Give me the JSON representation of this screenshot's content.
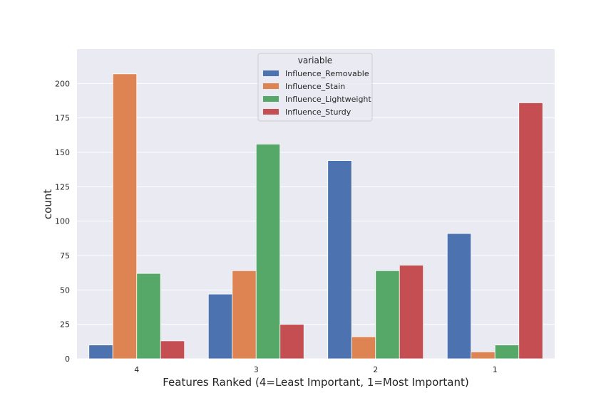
{
  "chart_data": {
    "type": "bar",
    "title": "",
    "xlabel": "Features Ranked (4=Least Important, 1=Most Important)",
    "ylabel": "count",
    "categories": [
      "4",
      "3",
      "2",
      "1"
    ],
    "ylim": [
      0,
      225
    ],
    "yticks": [
      0,
      25,
      50,
      75,
      100,
      125,
      150,
      175,
      200
    ],
    "grid": true,
    "legend": {
      "title": "variable",
      "placement": "top-center"
    },
    "series": [
      {
        "name": "Influence_Removable",
        "color": "#4c72b0",
        "values": [
          10,
          47,
          144,
          91
        ]
      },
      {
        "name": "Influence_Stain",
        "color": "#dd8452",
        "values": [
          207,
          64,
          16,
          5
        ]
      },
      {
        "name": "Influence_Lightweight",
        "color": "#55a868",
        "values": [
          62,
          156,
          64,
          10
        ]
      },
      {
        "name": "Influence_Sturdy",
        "color": "#c44e52",
        "values": [
          13,
          25,
          68,
          186
        ]
      }
    ]
  },
  "colors": {
    "plot_background": "#eaeaf2",
    "grid": "#ffffff",
    "text": "#262626"
  }
}
